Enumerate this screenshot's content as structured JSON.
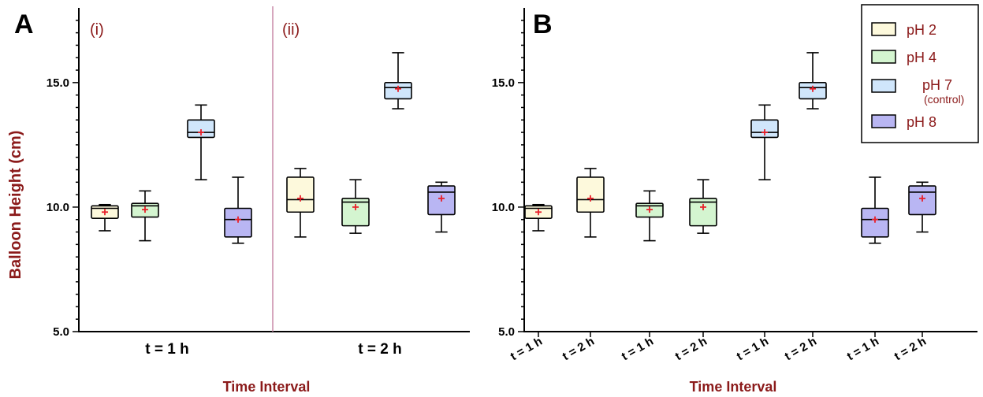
{
  "chart_data": [
    {
      "panel": "A",
      "type": "box",
      "ylabel": "Balloon Height (cm)",
      "xlabel": "Time Interval",
      "ylim": [
        5.0,
        18.0
      ],
      "yticks": [
        "5.0",
        "10.0",
        "15.0"
      ],
      "groups": [
        {
          "sublabel": "(i)",
          "label": "t = 1 h",
          "boxes": [
            {
              "series": "pH 2",
              "min": 9.05,
              "q1": 9.55,
              "median": 9.95,
              "q3": 10.05,
              "max": 10.1,
              "mean": 9.8
            },
            {
              "series": "pH 4",
              "min": 8.65,
              "q1": 9.6,
              "median": 10.05,
              "q3": 10.15,
              "max": 10.65,
              "mean": 9.9
            },
            {
              "series": "pH 7",
              "min": 11.1,
              "q1": 12.8,
              "median": 13.0,
              "q3": 13.5,
              "max": 14.1,
              "mean": 13.0
            },
            {
              "series": "pH 8",
              "min": 8.55,
              "q1": 8.8,
              "median": 9.5,
              "q3": 9.95,
              "max": 11.2,
              "mean": 9.5
            }
          ]
        },
        {
          "sublabel": "(ii)",
          "label": "t = 2 h",
          "boxes": [
            {
              "series": "pH 2",
              "min": 8.8,
              "q1": 9.8,
              "median": 10.3,
              "q3": 11.2,
              "max": 11.55,
              "mean": 10.35
            },
            {
              "series": "pH 4",
              "min": 8.95,
              "q1": 9.25,
              "median": 10.2,
              "q3": 10.35,
              "max": 11.1,
              "mean": 10.0
            },
            {
              "series": "pH 7",
              "min": 13.95,
              "q1": 14.35,
              "median": 14.8,
              "q3": 15.0,
              "max": 16.2,
              "mean": 14.75
            },
            {
              "series": "pH 8",
              "min": 9.0,
              "q1": 9.7,
              "median": 10.6,
              "q3": 10.85,
              "max": 11.0,
              "mean": 10.35
            }
          ]
        }
      ]
    },
    {
      "panel": "B",
      "type": "box",
      "xlabel": "Time Interval",
      "ylim": [
        5.0,
        18.0
      ],
      "yticks": [
        "5.0",
        "10.0",
        "15.0"
      ],
      "xticks": [
        "t = 1 h",
        "t = 2 h",
        "t = 1 h",
        "t = 2 h",
        "t = 1 h",
        "t = 2 h",
        "t = 1 h",
        "t = 2 h"
      ],
      "boxes": [
        {
          "series": "pH 2",
          "time": "t = 1 h",
          "min": 9.05,
          "q1": 9.55,
          "median": 9.95,
          "q3": 10.05,
          "max": 10.1,
          "mean": 9.8
        },
        {
          "series": "pH 2",
          "time": "t = 2 h",
          "min": 8.8,
          "q1": 9.8,
          "median": 10.3,
          "q3": 11.2,
          "max": 11.55,
          "mean": 10.35
        },
        {
          "series": "pH 4",
          "time": "t = 1 h",
          "min": 8.65,
          "q1": 9.6,
          "median": 10.05,
          "q3": 10.15,
          "max": 10.65,
          "mean": 9.9
        },
        {
          "series": "pH 4",
          "time": "t = 2 h",
          "min": 8.95,
          "q1": 9.25,
          "median": 10.2,
          "q3": 10.35,
          "max": 11.1,
          "mean": 10.0
        },
        {
          "series": "pH 7",
          "time": "t = 1 h",
          "min": 11.1,
          "q1": 12.8,
          "median": 13.0,
          "q3": 13.5,
          "max": 14.1,
          "mean": 13.0
        },
        {
          "series": "pH 7",
          "time": "t = 2 h",
          "min": 13.95,
          "q1": 14.35,
          "median": 14.8,
          "q3": 15.0,
          "max": 16.2,
          "mean": 14.75
        },
        {
          "series": "pH 8",
          "time": "t = 1 h",
          "min": 8.55,
          "q1": 8.8,
          "median": 9.5,
          "q3": 9.95,
          "max": 11.2,
          "mean": 9.5
        },
        {
          "series": "pH 8",
          "time": "t = 2 h",
          "min": 9.0,
          "q1": 9.7,
          "median": 10.6,
          "q3": 10.85,
          "max": 11.0,
          "mean": 10.35
        }
      ]
    }
  ],
  "legend": {
    "placement": "top-right",
    "items": [
      {
        "series": "pH 2",
        "label": "pH 2",
        "sub": "",
        "color": "#fdf9dc"
      },
      {
        "series": "pH 4",
        "label": "pH 4",
        "sub": "",
        "color": "#d4f5d0"
      },
      {
        "series": "pH 7",
        "label": "pH 7",
        "sub": "(control)",
        "color": "#d0e6fb"
      },
      {
        "series": "pH 8",
        "label": "pH 8",
        "sub": "",
        "color": "#b9b6f3"
      }
    ]
  },
  "colors": {
    "mean_marker": "#e8202a",
    "axis_label": "#8b1a1a",
    "divider": "#c98aa8"
  }
}
